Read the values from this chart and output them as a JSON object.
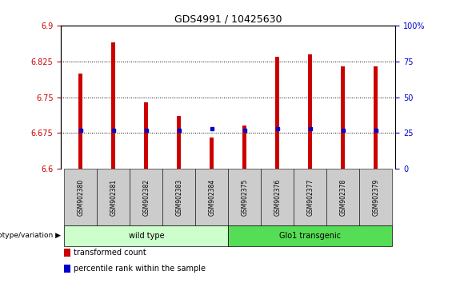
{
  "title": "GDS4991 / 10425630",
  "samples": [
    "GSM902380",
    "GSM902381",
    "GSM902382",
    "GSM902383",
    "GSM902384",
    "GSM902375",
    "GSM902376",
    "GSM902377",
    "GSM902378",
    "GSM902379"
  ],
  "groups": [
    {
      "label": "wild type",
      "color": "#ccffcc",
      "start": 0,
      "end": 5
    },
    {
      "label": "Glo1 transgenic",
      "color": "#55dd55",
      "start": 5,
      "end": 10
    }
  ],
  "transformed_count": [
    6.8,
    6.865,
    6.74,
    6.71,
    6.665,
    6.69,
    6.835,
    6.84,
    6.815,
    6.815
  ],
  "percentile_rank": [
    27,
    27,
    27,
    27,
    28,
    27,
    28,
    28,
    27,
    27
  ],
  "ylim_left": [
    6.6,
    6.9
  ],
  "ylim_right": [
    0,
    100
  ],
  "yticks_left": [
    6.6,
    6.675,
    6.75,
    6.825,
    6.9
  ],
  "yticks_left_labels": [
    "6.6",
    "6.675",
    "6.75",
    "6.825",
    "6.9"
  ],
  "yticks_right": [
    0,
    25,
    50,
    75,
    100
  ],
  "yticks_right_labels": [
    "0",
    "25",
    "50",
    "75",
    "100%"
  ],
  "bar_color": "#cc0000",
  "marker_color": "#0000cc",
  "bar_width": 0.12,
  "base_value": 6.6,
  "left_tick_color": "#cc0000",
  "right_tick_color": "#0000cc",
  "legend_items": [
    {
      "color": "#cc0000",
      "label": "transformed count"
    },
    {
      "color": "#0000cc",
      "label": "percentile rank within the sample"
    }
  ],
  "genotype_label": "genotype/variation",
  "gray_box_color": "#cccccc"
}
